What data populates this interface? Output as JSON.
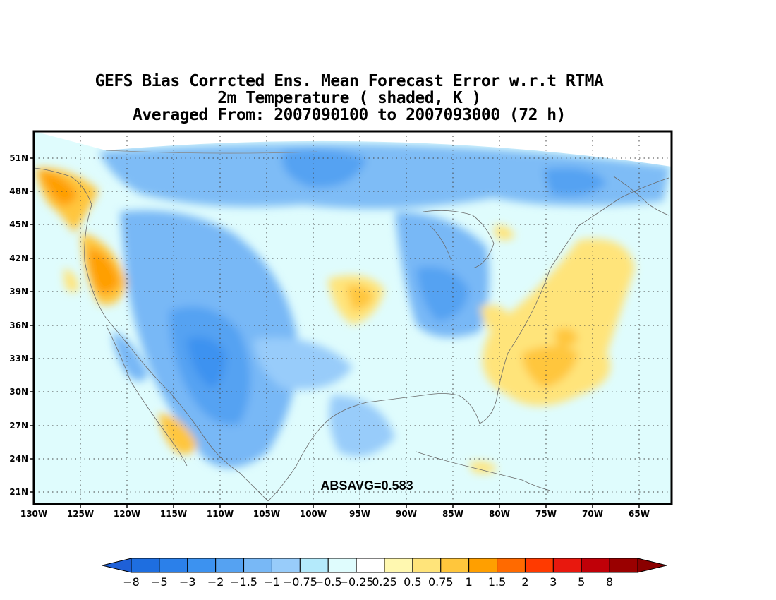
{
  "title": {
    "line1": "GEFS Bias Corrcted Ens. Mean Forecast Error w.r.t RTMA",
    "line2": "2m Temperature ( shaded, K )",
    "line3": "Averaged From: 2007090100 to 2007093000 (72 h)"
  },
  "lat_labels": [
    "51N",
    "48N",
    "45N",
    "42N",
    "39N",
    "36N",
    "33N",
    "30N",
    "27N",
    "24N",
    "21N"
  ],
  "lon_labels": [
    "130W",
    "125W",
    "120W",
    "115W",
    "110W",
    "105W",
    "100W",
    "95W",
    "90W",
    "85W",
    "80W",
    "75W",
    "70W",
    "65W"
  ],
  "annotation": "ABSAVG=0.583",
  "colorbar": {
    "labels": [
      "-8",
      "-5",
      "-3",
      "-2",
      "-1.5",
      "-1",
      "-0.75",
      "-0.5",
      "-0.25",
      "0.25",
      "0.5",
      "0.75",
      "1",
      "1.5",
      "2",
      "3",
      "5",
      "8"
    ],
    "colors": [
      "#1e6ee0",
      "#2b80ea",
      "#3c92f0",
      "#55a2f2",
      "#78b8f6",
      "#98ccfa",
      "#b4eafb",
      "#dffcfd",
      "#ffffff",
      "#fff8b0",
      "#ffe47a",
      "#ffc63c",
      "#ff9f00",
      "#ff6a00",
      "#ff3a00",
      "#e8180e",
      "#c00008",
      "#9a0000"
    ],
    "extend_low_color": "#1e60d8",
    "extend_high_color": "#8a0000"
  },
  "field_colors": {
    "water": "#c9f3fb",
    "land_base": "#dffcfd"
  }
}
